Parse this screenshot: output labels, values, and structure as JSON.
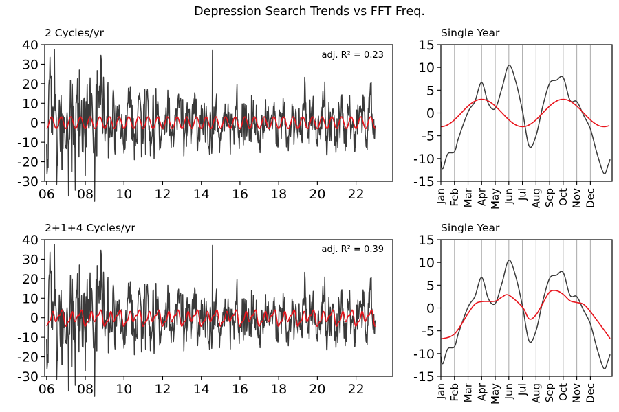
{
  "figure": {
    "title": "Depression Search Trends vs FFT Freq."
  },
  "chart_data": [
    {
      "type": "line",
      "title": "2 Cycles/yr",
      "annotation": "adj. R² = 0.23",
      "xlim": [
        5.9,
        23.9
      ],
      "ylim": [
        -30,
        40
      ],
      "xticks": [
        6,
        8,
        10,
        12,
        14,
        16,
        18,
        20,
        22
      ],
      "xticklabels": [
        "06",
        "08",
        "10",
        "12",
        "14",
        "16",
        "18",
        "20",
        "22"
      ],
      "yticks": [
        -30,
        -20,
        -10,
        0,
        10,
        20,
        30,
        40
      ],
      "series": [
        {
          "color": "#3a3a3a",
          "description": "weekly detrended search interest, 2006-2023, amplitude roughly ±10 with spikes to 37 (2006.4, 2014.6) and dips to -27 (2008)"
        },
        {
          "color": "#e8141c",
          "description": "fitted sinusoid, 2 cycles per year, amplitude 3"
        }
      ]
    },
    {
      "type": "line",
      "title": "Single Year",
      "xlim": [
        0,
        12.6
      ],
      "ylim": [
        -15,
        15
      ],
      "yticks": [
        -15,
        -10,
        -5,
        0,
        5,
        10,
        15
      ],
      "months": [
        "Jan",
        "Feb",
        "Mar",
        "Apr",
        "May",
        "Jun",
        "Jul",
        "Aug",
        "Sep",
        "Oct",
        "Nov",
        "Dec"
      ],
      "grid": "vertical at month ticks",
      "series": [
        {
          "color": "#3a3a3a",
          "x": [
            0.0,
            0.15,
            0.5,
            1.0,
            1.3,
            2.0,
            2.5,
            3.0,
            3.5,
            4.0,
            4.5,
            5.0,
            5.5,
            6.0,
            6.5,
            7.0,
            7.5,
            8.0,
            8.5,
            9.0,
            9.5,
            10.0,
            10.5,
            11.0,
            11.5,
            12.0,
            12.3,
            12.45
          ],
          "y": [
            -10.7,
            -12.2,
            -9.0,
            -8.5,
            -5.5,
            0.2,
            2.5,
            6.7,
            2.0,
            1.0,
            5.5,
            10.5,
            7.0,
            0.5,
            -7.3,
            -5.0,
            1.5,
            6.5,
            7.2,
            7.8,
            2.8,
            2.5,
            -0.5,
            -3.5,
            -9.0,
            -13.3,
            -11.5,
            -10.2
          ]
        },
        {
          "color": "#e8141c",
          "description": "2 cycles/yr fit, amplitude 3, peaks at Apr and Oct"
        }
      ]
    },
    {
      "type": "line",
      "title": "2+1+4 Cycles/yr",
      "annotation": "adj. R² = 0.39",
      "xlim": [
        5.9,
        23.9
      ],
      "ylim": [
        -30,
        40
      ],
      "xticks": [
        6,
        8,
        10,
        12,
        14,
        16,
        18,
        20,
        22
      ],
      "xticklabels": [
        "06",
        "08",
        "10",
        "12",
        "14",
        "16",
        "18",
        "20",
        "22"
      ],
      "yticks": [
        -30,
        -20,
        -10,
        0,
        10,
        20,
        30,
        40
      ],
      "series": [
        {
          "color": "#3a3a3a",
          "description": "same weekly search interest series as above"
        },
        {
          "color": "#e8141c",
          "description": "fit with 1, 2 and 4 cycles per year"
        }
      ]
    },
    {
      "type": "line",
      "title": "Single Year",
      "xlim": [
        0,
        12.6
      ],
      "ylim": [
        -15,
        15
      ],
      "yticks": [
        -15,
        -10,
        -5,
        0,
        5,
        10,
        15
      ],
      "months": [
        "Jan",
        "Feb",
        "Mar",
        "Apr",
        "May",
        "Jun",
        "Jul",
        "Aug",
        "Sep",
        "Oct",
        "Nov",
        "Dec"
      ],
      "grid": "vertical at month ticks",
      "series": [
        {
          "color": "#3a3a3a",
          "description": "same single-year profile as above"
        },
        {
          "color": "#e8141c",
          "x": [
            0.0,
            1.0,
            2.0,
            2.5,
            3.0,
            4.0,
            4.5,
            5.0,
            6.0,
            6.5,
            7.0,
            7.5,
            8.0,
            8.5,
            9.0,
            9.5,
            10.0,
            10.5,
            11.0,
            12.0,
            12.45
          ],
          "y": [
            -6.8,
            -5.7,
            -1.2,
            0.8,
            1.4,
            1.5,
            2.4,
            2.8,
            0.2,
            -2.4,
            -1.5,
            1.0,
            3.5,
            3.8,
            3.0,
            1.6,
            1.2,
            0.8,
            -0.8,
            -4.8,
            -6.7
          ]
        }
      ]
    }
  ]
}
